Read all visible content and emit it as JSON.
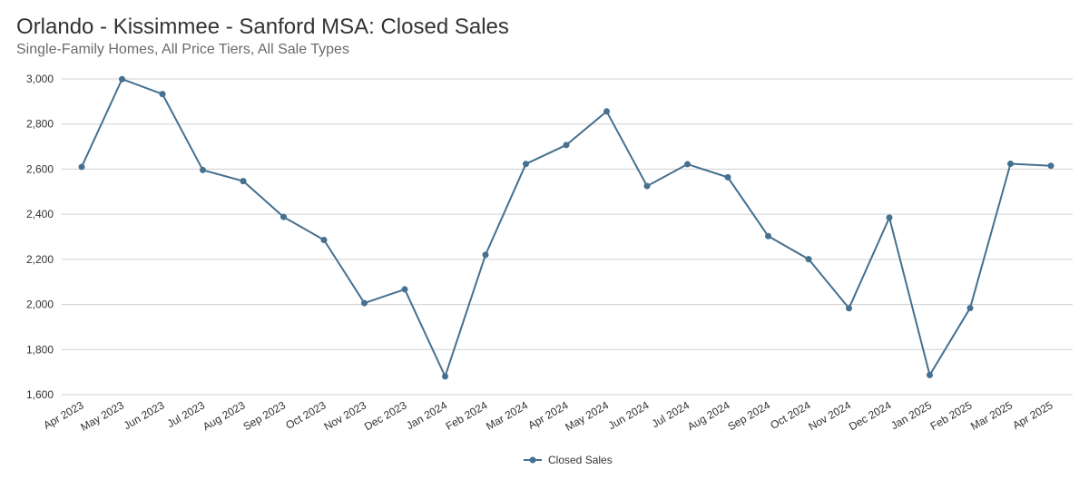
{
  "title": "Orlando - Kissimmee - Sanford MSA: Closed Sales",
  "subtitle": "Single-Family Homes, All Price Tiers, All Sale Types",
  "colors": {
    "series": "#45708f",
    "grid": "#d0d0d0",
    "text": "#333333"
  },
  "chart_data": {
    "type": "line",
    "title": "Orlando - Kissimmee - Sanford MSA: Closed Sales",
    "subtitle": "Single-Family Homes, All Price Tiers, All Sale Types",
    "xlabel": "",
    "ylabel": "",
    "ylim": [
      1600,
      3000
    ],
    "yticks": [
      1600,
      1800,
      2000,
      2200,
      2400,
      2600,
      2800,
      3000
    ],
    "ytick_labels": [
      "1,600",
      "1,800",
      "2,000",
      "2,200",
      "2,400",
      "2,600",
      "2,800",
      "3,000"
    ],
    "grid": "horizontal",
    "legend": "bottom-center",
    "categories": [
      "Apr 2023",
      "May 2023",
      "Jun 2023",
      "Jul 2023",
      "Aug 2023",
      "Sep 2023",
      "Oct 2023",
      "Nov 2023",
      "Dec 2023",
      "Jan 2024",
      "Feb 2024",
      "Mar 2024",
      "Apr 2024",
      "May 2024",
      "Jun 2024",
      "Jul 2024",
      "Aug 2024",
      "Sep 2024",
      "Oct 2024",
      "Nov 2024",
      "Dec 2024",
      "Jan 2025",
      "Feb 2025",
      "Mar 2025",
      "Apr 2025"
    ],
    "series": [
      {
        "name": "Closed Sales",
        "values": [
          2610,
          2999,
          2933,
          2596,
          2547,
          2388,
          2286,
          2006,
          2067,
          1681,
          2220,
          2623,
          2707,
          2856,
          2525,
          2622,
          2564,
          2303,
          2201,
          1983,
          2385,
          1687,
          1984,
          2624,
          2615
        ]
      }
    ]
  }
}
